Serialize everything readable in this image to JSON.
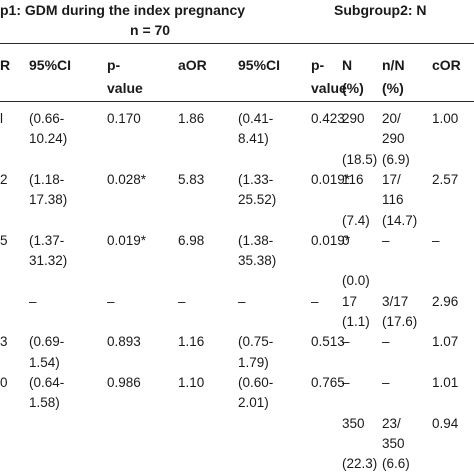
{
  "header": {
    "group1_title": "p1: GDM during the index pregnancy",
    "group1_n": "n = 70",
    "group2_title": "Subgroup2: N",
    "columns": [
      {
        "line1": "R",
        "line2": ""
      },
      {
        "line1": "95%CI",
        "line2": ""
      },
      {
        "line1": "p-",
        "line2": "value"
      },
      {
        "line1": "aOR",
        "line2": ""
      },
      {
        "line1": "95%CI",
        "line2": ""
      },
      {
        "line1": "p-",
        "line2": "value"
      },
      {
        "line1": "N",
        "line2": "(%)"
      },
      {
        "line1": "n/N",
        "line2": "(%)"
      },
      {
        "line1": "cOR",
        "line2": ""
      }
    ]
  },
  "rows": [
    [
      "l",
      "(0.66-",
      "0.170",
      "1.86",
      "(0.41-",
      "0.423",
      "290",
      "20/",
      "1.00"
    ],
    [
      "",
      "10.24)",
      "",
      "",
      "8.41)",
      "",
      "",
      "290",
      ""
    ],
    [
      "",
      "",
      "",
      "",
      "",
      "",
      "(18.5)",
      "(6.9)",
      ""
    ],
    [
      "2",
      "(1.18-",
      "0.028*",
      "5.83",
      "(1.33-",
      "0.019*",
      "116",
      "17/",
      "2.57"
    ],
    [
      "",
      "17.38)",
      "",
      "",
      "25.52)",
      "",
      "",
      "116",
      ""
    ],
    [
      "",
      "",
      "",
      "",
      "",
      "",
      "(7.4)",
      "(14.7)",
      ""
    ],
    [
      "5",
      "(1.37-",
      "0.019*",
      "6.98",
      "(1.38-",
      "0.019*",
      "0",
      "–",
      "–"
    ],
    [
      "",
      "31.32)",
      "",
      "",
      "35.38)",
      "",
      "",
      "",
      ""
    ],
    [
      "",
      "",
      "",
      "",
      "",
      "",
      "(0.0)",
      "",
      ""
    ],
    [
      "",
      "–",
      "–",
      "–",
      "–",
      "–",
      "17",
      "3/17",
      "2.96"
    ],
    [
      "",
      "",
      "",
      "",
      "",
      "",
      "(1.1)",
      "(17.6)",
      ""
    ],
    [
      "3",
      "(0.69-",
      "0.893",
      "1.16",
      "(0.75-",
      "0.513",
      "–",
      "–",
      "1.07"
    ],
    [
      "",
      "1.54)",
      "",
      "",
      "1.79)",
      "",
      "",
      "",
      ""
    ],
    [
      "0",
      "(0.64-",
      "0.986",
      "1.10",
      "(0.60-",
      "0.765",
      "–",
      "–",
      "1.01"
    ],
    [
      "",
      "1.58)",
      "",
      "",
      "2.01)",
      "",
      "",
      "",
      ""
    ],
    [
      "",
      "",
      "",
      "",
      "",
      "",
      "350",
      "23/",
      "0.94"
    ],
    [
      "",
      "",
      "",
      "",
      "",
      "",
      "",
      "350",
      ""
    ],
    [
      "",
      "",
      "",
      "",
      "",
      "",
      "(22.3)",
      "(6.6)",
      ""
    ]
  ]
}
